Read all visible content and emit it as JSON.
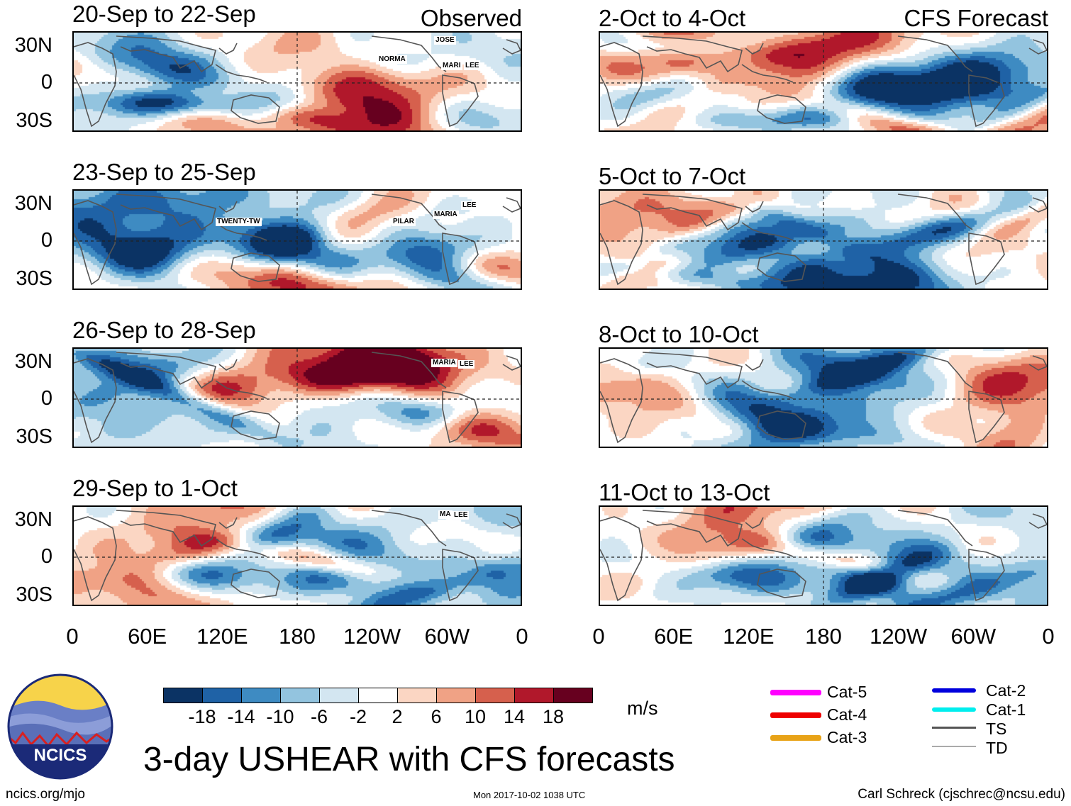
{
  "header": {
    "left_label": "Observed",
    "right_label": "CFS Forecast"
  },
  "observed_panels": [
    {
      "title": "20-Sep to 22-Sep",
      "storms": [
        "JOSE",
        "NORMA",
        "MARI",
        "LEE"
      ]
    },
    {
      "title": "23-Sep to 25-Sep",
      "storms": [
        "TWENTY-TW",
        "PILAR",
        "MARIA",
        "LEE"
      ]
    },
    {
      "title": "26-Sep to 28-Sep",
      "storms": [
        "MARIA",
        "LEE"
      ]
    },
    {
      "title": "29-Sep to 1-Oct",
      "storms": [
        "MA",
        "LEE"
      ]
    }
  ],
  "forecast_panels": [
    {
      "title": "2-Oct to 4-Oct"
    },
    {
      "title": "5-Oct to 7-Oct"
    },
    {
      "title": "8-Oct to 10-Oct"
    },
    {
      "title": "11-Oct to 13-Oct"
    }
  ],
  "y_axis": [
    "30N",
    "0",
    "30S"
  ],
  "x_axis": [
    "0",
    "60E",
    "120E",
    "180",
    "120W",
    "60W",
    "0"
  ],
  "colorbar": {
    "colors": [
      "#0b3364",
      "#1f62a6",
      "#3e8bc2",
      "#93c4df",
      "#d3e6f1",
      "#ffffff",
      "#fbd6c3",
      "#f0a285",
      "#d6604d",
      "#b1182b",
      "#67001f"
    ],
    "ticks": [
      "-18",
      "-14",
      "-10",
      "-6",
      "-2",
      "2",
      "6",
      "10",
      "14",
      "18"
    ],
    "unit": "m/s"
  },
  "legend": [
    {
      "label": "Cat-5",
      "color": "#ff00ff"
    },
    {
      "label": "Cat-4",
      "color": "#ee0000"
    },
    {
      "label": "Cat-3",
      "color": "#e8a317"
    },
    {
      "label": "Cat-2",
      "color": "#0000dd"
    },
    {
      "label": "Cat-1",
      "color": "#00eeee"
    },
    {
      "label": "TS",
      "color": "#555555"
    },
    {
      "label": "TD",
      "color": "#aaaaaa"
    }
  ],
  "logo_text": "NCICS",
  "main_title": "3-day USHEAR with CFS forecasts",
  "footer": {
    "left": "ncics.org/mjo",
    "center": "Mon 2017-10-02 1038 UTC",
    "right": "Carl Schreck (cjschrec@ncsu.edu)"
  }
}
